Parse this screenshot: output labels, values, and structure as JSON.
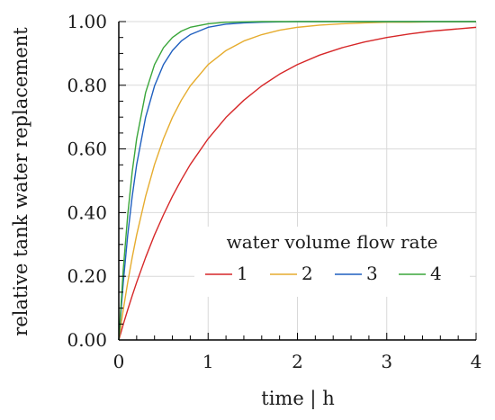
{
  "chart_data": {
    "type": "line",
    "title": "",
    "xlabel": "time | h",
    "ylabel": "relative tank water replacement",
    "xlim": [
      0,
      4
    ],
    "ylim": [
      0,
      1
    ],
    "grid": true,
    "x_ticks": [
      0,
      1,
      2,
      3,
      4
    ],
    "x_tick_labels": [
      "0",
      "1",
      "2",
      "3",
      "4"
    ],
    "y_ticks": [
      0,
      0.2,
      0.4,
      0.6,
      0.8,
      1.0
    ],
    "y_tick_labels": [
      "0.00",
      "0.20",
      "0.40",
      "0.60",
      "0.80",
      "1.00"
    ],
    "legend": {
      "title": "water volume flow rate",
      "placement": "lower-right"
    },
    "x": [
      0,
      0.05,
      0.1,
      0.15,
      0.2,
      0.3,
      0.4,
      0.5,
      0.6,
      0.7,
      0.8,
      1.0,
      1.2,
      1.4,
      1.6,
      1.8,
      2.0,
      2.25,
      2.5,
      2.75,
      3.0,
      3.25,
      3.5,
      3.75,
      4.0
    ],
    "series": [
      {
        "name": "1",
        "color": "#d62728",
        "values": [
          0,
          0.049,
          0.095,
          0.139,
          0.181,
          0.259,
          0.33,
          0.393,
          0.451,
          0.503,
          0.551,
          0.632,
          0.699,
          0.753,
          0.798,
          0.835,
          0.865,
          0.895,
          0.918,
          0.936,
          0.95,
          0.961,
          0.97,
          0.976,
          0.982
        ]
      },
      {
        "name": "2",
        "color": "#e6ac2e",
        "values": [
          0,
          0.095,
          0.181,
          0.259,
          0.33,
          0.451,
          0.551,
          0.632,
          0.699,
          0.753,
          0.798,
          0.865,
          0.909,
          0.939,
          0.959,
          0.973,
          0.982,
          0.989,
          0.993,
          0.996,
          0.998,
          0.998,
          0.999,
          0.999,
          1.0
        ]
      },
      {
        "name": "3",
        "color": "#1f5fbf",
        "values": [
          0,
          0.181,
          0.33,
          0.451,
          0.551,
          0.699,
          0.798,
          0.865,
          0.909,
          0.939,
          0.959,
          0.982,
          0.992,
          0.996,
          0.998,
          0.999,
          1.0,
          1.0,
          1.0,
          1.0,
          1.0,
          1.0,
          1.0,
          1.0,
          1.0
        ]
      },
      {
        "name": "4",
        "color": "#3aa63a",
        "values": [
          0,
          0.221,
          0.393,
          0.528,
          0.632,
          0.777,
          0.865,
          0.918,
          0.95,
          0.97,
          0.982,
          0.993,
          0.998,
          0.999,
          1.0,
          1.0,
          1.0,
          1.0,
          1.0,
          1.0,
          1.0,
          1.0,
          1.0,
          1.0,
          1.0
        ]
      }
    ]
  }
}
